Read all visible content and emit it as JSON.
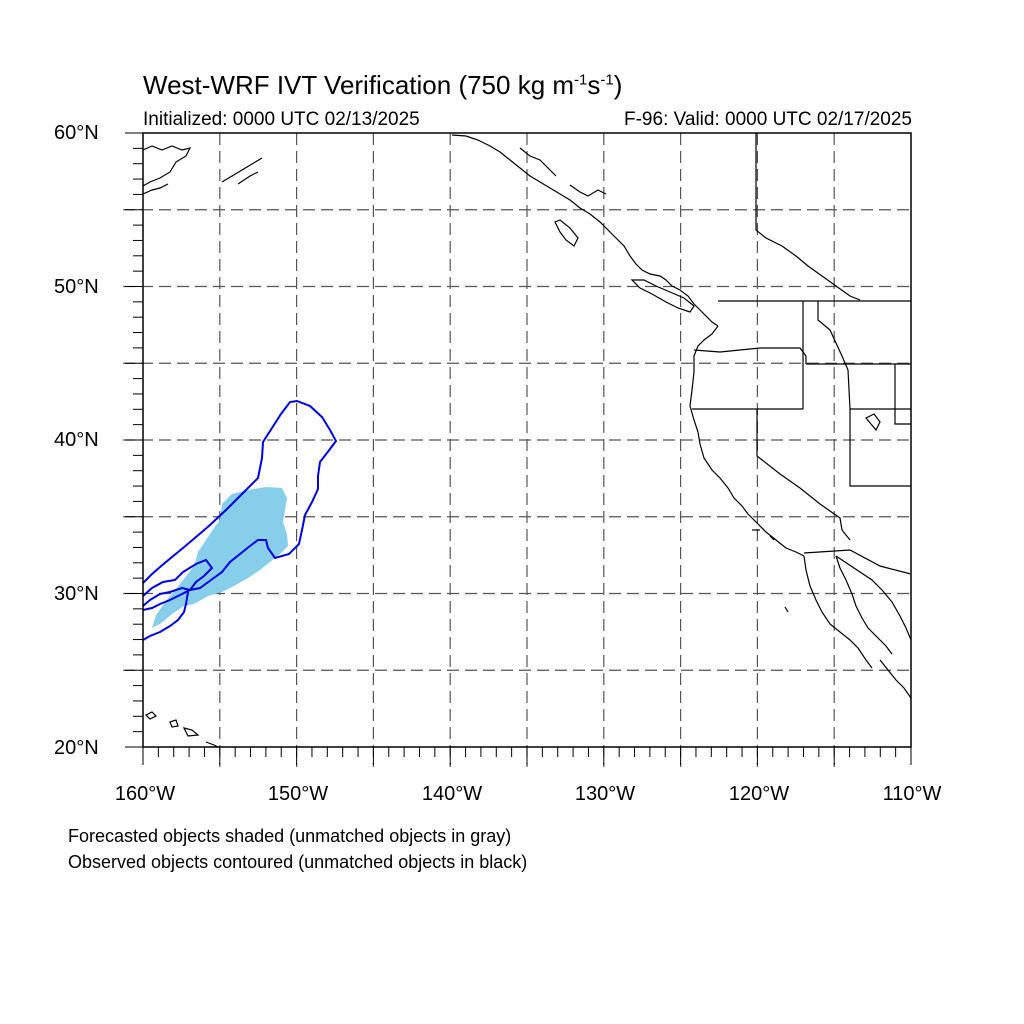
{
  "header": {
    "title_main": "West-WRF IVT Verification (750 kg m",
    "title_exp1": "-1",
    "title_mid": "s",
    "title_exp2": "-1",
    "title_end": ")",
    "initialized": "Initialized: 0000 UTC 02/13/2025",
    "valid": "F-96: Valid: 0000 UTC 02/17/2025"
  },
  "axes": {
    "lat_labels": [
      "60°N",
      "50°N",
      "40°N",
      "30°N",
      "20°N"
    ],
    "lon_labels": [
      "160°W",
      "150°W",
      "140°W",
      "130°W",
      "120°W",
      "110°W"
    ],
    "lat_range": [
      20,
      60
    ],
    "lon_range": [
      -160,
      -110
    ],
    "grid": "dashed every 5°"
  },
  "notes": {
    "line1": "Forecasted objects shaded (unmatched objects in gray)",
    "line2": "Observed objects contoured (unmatched objects in black)"
  },
  "colors": {
    "forecast_fill": "#87ceeb",
    "observed_contour": "#0000dd",
    "coastline": "#000000",
    "grid": "#555555"
  }
}
